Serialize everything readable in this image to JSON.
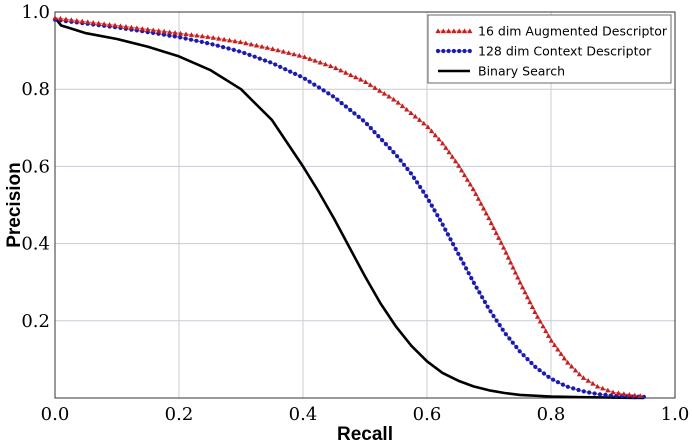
{
  "chart_data": {
    "type": "line",
    "title": "",
    "xlabel": "Recall",
    "ylabel": "Precision",
    "xlim": [
      0.0,
      1.0
    ],
    "ylim": [
      0.0,
      1.0
    ],
    "xticks": [
      "0.0",
      "0.2",
      "0.4",
      "0.6",
      "0.8",
      "1.0"
    ],
    "yticks": [
      "0.2",
      "0.4",
      "0.6",
      "0.8",
      "1.0"
    ],
    "grid": true,
    "legend_position": "top-right",
    "series": [
      {
        "name": "16 dim Augmented Descriptor",
        "color": "#c41e1e",
        "style": "dotted-triangle",
        "x": [
          0.0,
          0.05,
          0.1,
          0.15,
          0.2,
          0.25,
          0.3,
          0.35,
          0.4,
          0.45,
          0.5,
          0.55,
          0.6,
          0.625,
          0.65,
          0.675,
          0.7,
          0.725,
          0.75,
          0.775,
          0.8,
          0.825,
          0.85,
          0.875,
          0.9,
          0.92,
          0.94,
          0.95
        ],
        "y": [
          0.985,
          0.975,
          0.965,
          0.955,
          0.945,
          0.935,
          0.922,
          0.905,
          0.885,
          0.857,
          0.82,
          0.77,
          0.705,
          0.66,
          0.605,
          0.54,
          0.465,
          0.385,
          0.3,
          0.22,
          0.15,
          0.095,
          0.055,
          0.03,
          0.015,
          0.01,
          0.006,
          0.005
        ]
      },
      {
        "name": "128 dim Context Descriptor",
        "color": "#1a1ab0",
        "style": "dotted-circle",
        "x": [
          0.0,
          0.05,
          0.1,
          0.15,
          0.2,
          0.25,
          0.3,
          0.35,
          0.4,
          0.45,
          0.5,
          0.55,
          0.575,
          0.6,
          0.625,
          0.65,
          0.675,
          0.7,
          0.725,
          0.75,
          0.775,
          0.8,
          0.825,
          0.85,
          0.875,
          0.9,
          0.925,
          0.95
        ],
        "y": [
          0.98,
          0.97,
          0.96,
          0.948,
          0.935,
          0.918,
          0.897,
          0.868,
          0.83,
          0.78,
          0.715,
          0.63,
          0.58,
          0.52,
          0.45,
          0.375,
          0.3,
          0.23,
          0.17,
          0.12,
          0.08,
          0.05,
          0.03,
          0.018,
          0.01,
          0.006,
          0.004,
          0.003
        ]
      },
      {
        "name": "Binary Search",
        "color": "#000000",
        "style": "solid",
        "x": [
          0.0,
          0.005,
          0.01,
          0.02,
          0.05,
          0.1,
          0.15,
          0.2,
          0.25,
          0.3,
          0.35,
          0.4,
          0.425,
          0.45,
          0.475,
          0.5,
          0.525,
          0.55,
          0.575,
          0.6,
          0.625,
          0.65,
          0.675,
          0.7,
          0.725,
          0.75,
          0.8,
          0.85,
          0.9,
          0.95
        ],
        "y": [
          0.985,
          0.975,
          0.965,
          0.96,
          0.945,
          0.93,
          0.91,
          0.885,
          0.85,
          0.8,
          0.72,
          0.6,
          0.535,
          0.465,
          0.39,
          0.315,
          0.245,
          0.185,
          0.135,
          0.095,
          0.065,
          0.045,
          0.03,
          0.02,
          0.013,
          0.008,
          0.004,
          0.002,
          0.001,
          0.0
        ]
      }
    ]
  }
}
